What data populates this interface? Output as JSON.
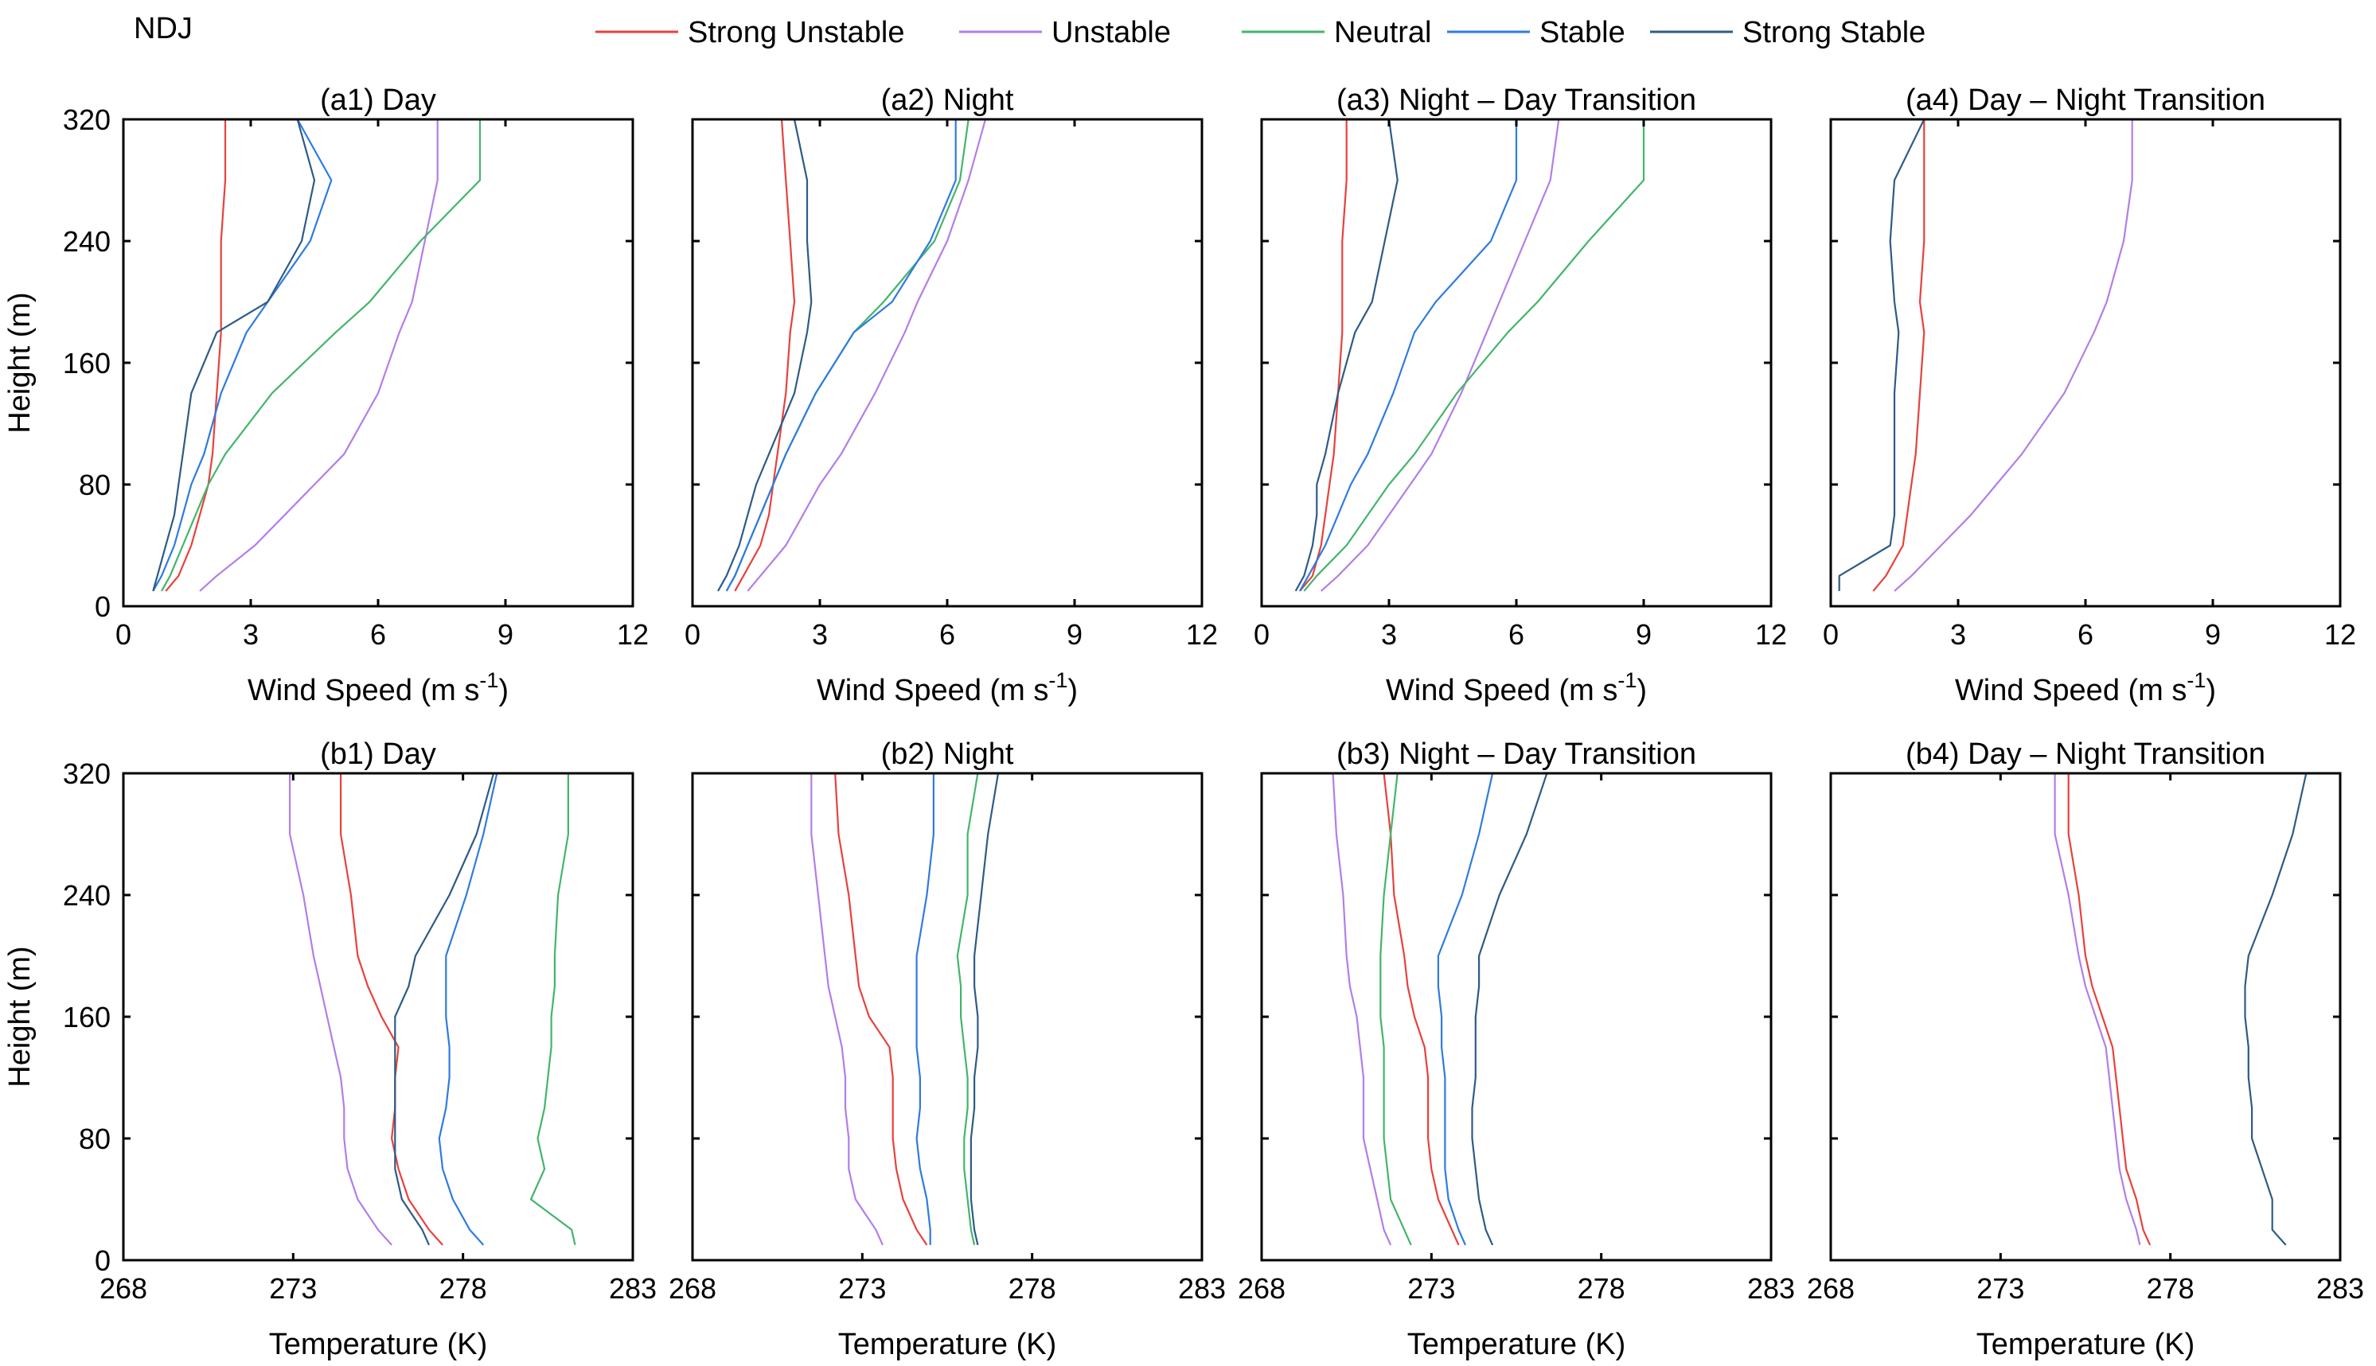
{
  "figure": {
    "season_label": "NDJ"
  },
  "legend": [
    {
      "name": "Strong Unstable",
      "color": "#e8413c"
    },
    {
      "name": "Unstable",
      "color": "#b27ee8"
    },
    {
      "name": "Neutral",
      "color": "#43b56b"
    },
    {
      "name": "Stable",
      "color": "#2f7be0"
    },
    {
      "name": "Strong Stable",
      "color": "#2e5b86"
    }
  ],
  "chart_data": [
    {
      "type": "line",
      "title": "(a1) Day",
      "xlabel": "Wind Speed (m s",
      "xlabel_sup": "-1",
      "xlabel_end": ")",
      "ylabel": "Height (m)",
      "xlim": [
        0,
        12
      ],
      "ylim": [
        0,
        320
      ],
      "xticks": [
        0,
        3,
        6,
        9,
        12
      ],
      "xtick_labels": [
        "0",
        "3",
        "6",
        "9",
        "12"
      ],
      "yticks": [
        0,
        80,
        160,
        240,
        320
      ],
      "ytick_labels": [
        "0",
        "80",
        "160",
        "240",
        "320"
      ],
      "heights": [
        10,
        20,
        40,
        60,
        80,
        100,
        140,
        180,
        200,
        240,
        280,
        320
      ],
      "series": [
        {
          "name": "Strong Unstable",
          "values": [
            1.0,
            1.3,
            1.6,
            1.8,
            2.0,
            2.1,
            2.2,
            2.3,
            2.3,
            2.3,
            2.4,
            2.4
          ]
        },
        {
          "name": "Unstable",
          "values": [
            1.8,
            2.2,
            3.1,
            3.8,
            4.5,
            5.2,
            6.0,
            6.5,
            6.8,
            7.1,
            7.4,
            7.4
          ]
        },
        {
          "name": "Neutral",
          "values": [
            0.9,
            1.1,
            1.4,
            1.7,
            2.0,
            2.4,
            3.5,
            5.0,
            5.8,
            7.0,
            8.4,
            8.4
          ]
        },
        {
          "name": "Stable",
          "values": [
            0.7,
            0.9,
            1.2,
            1.4,
            1.6,
            1.9,
            2.3,
            2.9,
            3.4,
            4.4,
            4.9,
            4.1
          ]
        },
        {
          "name": "Strong Stable",
          "values": [
            0.7,
            0.8,
            1.0,
            1.2,
            1.3,
            1.4,
            1.6,
            2.2,
            3.4,
            4.2,
            4.5,
            4.1
          ]
        }
      ]
    },
    {
      "type": "line",
      "title": "(a2) Night",
      "xlabel": "Wind Speed (m s",
      "xlabel_sup": "-1",
      "xlabel_end": ")",
      "ylabel": "",
      "xlim": [
        0,
        12
      ],
      "ylim": [
        0,
        320
      ],
      "xticks": [
        0,
        3,
        6,
        9,
        12
      ],
      "xtick_labels": [
        "0",
        "3",
        "6",
        "9",
        "12"
      ],
      "yticks": [
        0,
        80,
        160,
        240,
        320
      ],
      "ytick_labels": [],
      "heights": [
        10,
        20,
        40,
        60,
        80,
        100,
        140,
        180,
        200,
        240,
        280,
        320
      ],
      "series": [
        {
          "name": "Strong Unstable",
          "values": [
            1.0,
            1.2,
            1.6,
            1.8,
            1.9,
            2.0,
            2.2,
            2.3,
            2.4,
            2.3,
            2.2,
            2.1
          ]
        },
        {
          "name": "Unstable",
          "values": [
            1.3,
            1.6,
            2.2,
            2.6,
            3.0,
            3.5,
            4.3,
            5.0,
            5.3,
            6.0,
            6.5,
            6.9
          ]
        },
        {
          "name": "Neutral",
          "values": [
            0.8,
            1.0,
            1.3,
            1.6,
            1.9,
            2.2,
            2.9,
            3.8,
            4.5,
            5.7,
            6.3,
            6.5
          ]
        },
        {
          "name": "Stable",
          "values": [
            0.8,
            1.0,
            1.3,
            1.6,
            1.9,
            2.2,
            2.9,
            3.8,
            4.7,
            5.6,
            6.2,
            6.2
          ]
        },
        {
          "name": "Strong Stable",
          "values": [
            0.6,
            0.8,
            1.1,
            1.3,
            1.5,
            1.8,
            2.4,
            2.7,
            2.8,
            2.7,
            2.7,
            2.4
          ]
        }
      ]
    },
    {
      "type": "line",
      "title": "(a3) Night – Day Transition",
      "xlabel": "Wind Speed (m s",
      "xlabel_sup": "-1",
      "xlabel_end": ")",
      "ylabel": "",
      "xlim": [
        0,
        12
      ],
      "ylim": [
        0,
        320
      ],
      "xticks": [
        0,
        3,
        6,
        9,
        12
      ],
      "xtick_labels": [
        "0",
        "3",
        "6",
        "9",
        "12"
      ],
      "yticks": [
        0,
        80,
        160,
        240,
        320
      ],
      "ytick_labels": [],
      "heights": [
        10,
        20,
        40,
        60,
        80,
        100,
        140,
        180,
        200,
        240,
        280,
        320
      ],
      "series": [
        {
          "name": "Strong Unstable",
          "values": [
            0.9,
            1.2,
            1.4,
            1.5,
            1.6,
            1.7,
            1.8,
            1.9,
            1.9,
            1.9,
            2.0,
            2.0
          ]
        },
        {
          "name": "Unstable",
          "values": [
            1.4,
            1.8,
            2.5,
            3.0,
            3.5,
            4.0,
            4.7,
            5.3,
            5.6,
            6.2,
            6.8,
            7.0
          ]
        },
        {
          "name": "Neutral",
          "values": [
            1.0,
            1.3,
            2.0,
            2.5,
            3.0,
            3.6,
            4.6,
            5.8,
            6.5,
            7.7,
            9.0,
            9.0
          ]
        },
        {
          "name": "Stable",
          "values": [
            0.9,
            1.1,
            1.5,
            1.8,
            2.1,
            2.5,
            3.1,
            3.6,
            4.1,
            5.4,
            6.0,
            6.0
          ]
        },
        {
          "name": "Strong Stable",
          "values": [
            0.8,
            1.0,
            1.2,
            1.3,
            1.3,
            1.5,
            1.8,
            2.2,
            2.6,
            2.9,
            3.2,
            3.0
          ]
        }
      ]
    },
    {
      "type": "line",
      "title": "(a4) Day – Night Transition",
      "xlabel": "Wind Speed (m s",
      "xlabel_sup": "-1",
      "xlabel_end": ")",
      "ylabel": "",
      "xlim": [
        0,
        12
      ],
      "ylim": [
        0,
        320
      ],
      "xticks": [
        0,
        3,
        6,
        9,
        12
      ],
      "xtick_labels": [
        "0",
        "3",
        "6",
        "9",
        "12"
      ],
      "yticks": [
        0,
        80,
        160,
        240,
        320
      ],
      "ytick_labels": [],
      "heights": [
        10,
        20,
        40,
        60,
        80,
        100,
        140,
        180,
        200,
        240,
        280,
        320
      ],
      "series": [
        {
          "name": "Strong Unstable",
          "values": [
            1.0,
            1.3,
            1.7,
            1.8,
            1.9,
            2.0,
            2.1,
            2.2,
            2.1,
            2.2,
            2.2,
            2.2
          ]
        },
        {
          "name": "Unstable",
          "values": [
            1.5,
            1.9,
            2.6,
            3.3,
            3.9,
            4.5,
            5.5,
            6.2,
            6.5,
            6.9,
            7.1,
            7.1
          ]
        },
        {
          "name": "Strong Stable",
          "values": [
            0.2,
            0.2,
            1.4,
            1.5,
            1.5,
            1.5,
            1.5,
            1.6,
            1.5,
            1.4,
            1.5,
            2.2
          ]
        }
      ]
    },
    {
      "type": "line",
      "title": "(b1) Day",
      "xlabel": "Temperature (K)",
      "xlabel_sup": "",
      "xlabel_end": "",
      "ylabel": "Height (m)",
      "xlim": [
        268,
        283
      ],
      "ylim": [
        0,
        320
      ],
      "xticks": [
        268,
        273,
        278,
        283
      ],
      "xtick_labels": [
        "268",
        "273",
        "278",
        "283"
      ],
      "yticks": [
        0,
        80,
        160,
        240,
        320
      ],
      "ytick_labels": [
        "0",
        "80",
        "160",
        "240",
        "320"
      ],
      "heights": [
        10,
        20,
        40,
        60,
        80,
        100,
        120,
        140,
        160,
        180,
        200,
        240,
        280,
        320
      ],
      "series": [
        {
          "name": "Strong Unstable",
          "values": [
            277.4,
            277.0,
            276.4,
            276.1,
            275.9,
            276.0,
            276.0,
            276.1,
            275.6,
            275.2,
            274.9,
            274.7,
            274.4,
            274.4
          ]
        },
        {
          "name": "Unstable",
          "values": [
            275.9,
            275.5,
            274.9,
            274.6,
            274.5,
            274.5,
            274.4,
            274.2,
            274.0,
            273.8,
            273.6,
            273.3,
            272.9,
            272.9
          ]
        },
        {
          "name": "Neutral",
          "values": [
            281.3,
            281.2,
            280.0,
            280.4,
            280.2,
            280.4,
            280.5,
            280.6,
            280.6,
            280.7,
            280.7,
            280.8,
            281.1,
            281.1
          ]
        },
        {
          "name": "Stable",
          "values": [
            278.6,
            278.2,
            277.7,
            277.4,
            277.3,
            277.5,
            277.6,
            277.6,
            277.5,
            277.5,
            277.5,
            278.1,
            278.6,
            279.0
          ]
        },
        {
          "name": "Strong Stable",
          "values": [
            277.0,
            276.8,
            276.2,
            276.0,
            276.0,
            276.0,
            276.0,
            276.0,
            276.0,
            276.4,
            276.6,
            277.6,
            278.4,
            278.9
          ]
        }
      ]
    },
    {
      "type": "line",
      "title": "(b2) Night",
      "xlabel": "Temperature (K)",
      "xlabel_sup": "",
      "xlabel_end": "",
      "ylabel": "",
      "xlim": [
        268,
        283
      ],
      "ylim": [
        0,
        320
      ],
      "xticks": [
        268,
        273,
        278,
        283
      ],
      "xtick_labels": [
        "268",
        "273",
        "278",
        "283"
      ],
      "yticks": [
        0,
        80,
        160,
        240,
        320
      ],
      "ytick_labels": [],
      "heights": [
        10,
        20,
        40,
        60,
        80,
        100,
        120,
        140,
        160,
        180,
        200,
        240,
        280,
        320
      ],
      "series": [
        {
          "name": "Strong Unstable",
          "values": [
            274.9,
            274.6,
            274.2,
            274.0,
            273.9,
            273.9,
            273.9,
            273.8,
            273.2,
            272.9,
            272.8,
            272.6,
            272.3,
            272.2
          ]
        },
        {
          "name": "Unstable",
          "values": [
            273.6,
            273.4,
            272.8,
            272.6,
            272.6,
            272.5,
            272.5,
            272.4,
            272.2,
            272.0,
            271.9,
            271.7,
            271.5,
            271.5
          ]
        },
        {
          "name": "Neutral",
          "values": [
            276.3,
            276.2,
            276.1,
            276.0,
            276.0,
            276.1,
            276.1,
            276.0,
            275.9,
            275.9,
            275.8,
            276.1,
            276.1,
            276.4
          ]
        },
        {
          "name": "Stable",
          "values": [
            275.0,
            275.0,
            274.9,
            274.7,
            274.6,
            274.7,
            274.7,
            274.6,
            274.6,
            274.6,
            274.6,
            274.9,
            275.1,
            275.1
          ]
        },
        {
          "name": "Strong Stable",
          "values": [
            276.4,
            276.3,
            276.2,
            276.2,
            276.2,
            276.3,
            276.3,
            276.4,
            276.4,
            276.3,
            276.3,
            276.5,
            276.7,
            277.0
          ]
        }
      ]
    },
    {
      "type": "line",
      "title": "(b3) Night – Day Transition",
      "xlabel": "Temperature (K)",
      "xlabel_sup": "",
      "xlabel_end": "",
      "ylabel": "",
      "xlim": [
        268,
        283
      ],
      "ylim": [
        0,
        320
      ],
      "xticks": [
        268,
        273,
        278,
        283
      ],
      "xtick_labels": [
        "268",
        "273",
        "278",
        "283"
      ],
      "yticks": [
        0,
        80,
        160,
        240,
        320
      ],
      "ytick_labels": [],
      "heights": [
        10,
        20,
        40,
        60,
        80,
        100,
        120,
        140,
        160,
        180,
        200,
        240,
        280,
        320
      ],
      "series": [
        {
          "name": "Strong Unstable",
          "values": [
            273.8,
            273.6,
            273.2,
            273.0,
            272.9,
            272.9,
            272.9,
            272.8,
            272.5,
            272.3,
            272.2,
            271.9,
            271.8,
            271.6
          ]
        },
        {
          "name": "Unstable",
          "values": [
            271.8,
            271.6,
            271.4,
            271.2,
            271.0,
            271.0,
            271.0,
            270.9,
            270.8,
            270.6,
            270.5,
            270.4,
            270.2,
            270.1
          ]
        },
        {
          "name": "Neutral",
          "values": [
            272.4,
            272.2,
            271.8,
            271.7,
            271.6,
            271.6,
            271.6,
            271.6,
            271.5,
            271.5,
            271.5,
            271.6,
            271.8,
            272.0
          ]
        },
        {
          "name": "Stable",
          "values": [
            274.0,
            273.8,
            273.5,
            273.4,
            273.4,
            273.4,
            273.4,
            273.3,
            273.3,
            273.2,
            273.2,
            273.9,
            274.4,
            274.8
          ]
        },
        {
          "name": "Strong Stable",
          "values": [
            274.8,
            274.6,
            274.4,
            274.3,
            274.2,
            274.2,
            274.3,
            274.3,
            274.3,
            274.4,
            274.4,
            275.0,
            275.8,
            276.4
          ]
        }
      ]
    },
    {
      "type": "line",
      "title": "(b4) Day – Night Transition",
      "xlabel": "Temperature (K)",
      "xlabel_sup": "",
      "xlabel_end": "",
      "ylabel": "",
      "xlim": [
        268,
        283
      ],
      "ylim": [
        0,
        320
      ],
      "xticks": [
        268,
        273,
        278,
        283
      ],
      "xtick_labels": [
        "268",
        "273",
        "278",
        "283"
      ],
      "yticks": [
        0,
        80,
        160,
        240,
        320
      ],
      "ytick_labels": [],
      "heights": [
        10,
        20,
        40,
        60,
        80,
        100,
        120,
        140,
        160,
        180,
        200,
        240,
        280,
        320
      ],
      "series": [
        {
          "name": "Strong Unstable",
          "values": [
            277.4,
            277.2,
            277.0,
            276.7,
            276.6,
            276.5,
            276.4,
            276.3,
            276.0,
            275.7,
            275.5,
            275.3,
            275.0,
            275.0
          ]
        },
        {
          "name": "Unstable",
          "values": [
            277.1,
            277.0,
            276.7,
            276.5,
            276.4,
            276.3,
            276.2,
            276.1,
            275.8,
            275.5,
            275.3,
            275.0,
            274.6,
            274.6
          ]
        },
        {
          "name": "Strong Stable",
          "values": [
            281.4,
            281.0,
            281.0,
            280.7,
            280.4,
            280.4,
            280.3,
            280.3,
            280.2,
            280.2,
            280.3,
            281.0,
            281.6,
            282.0
          ]
        }
      ]
    }
  ]
}
